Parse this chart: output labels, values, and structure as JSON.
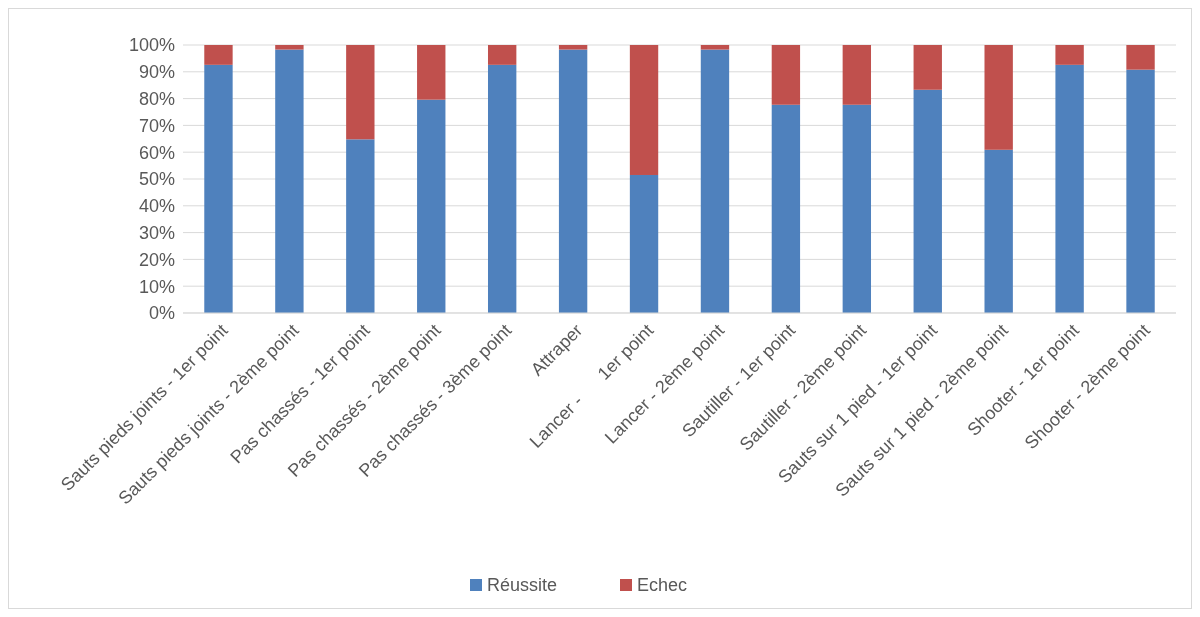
{
  "chart_data": {
    "type": "bar",
    "stacked": true,
    "categories": [
      "Sauts pieds joints - 1er point",
      "Sauts pieds joints - 2ème point",
      "Pas chassés - 1er point",
      "Pas chassés - 2ème point",
      "Pas chassés - 3ème point",
      "Attraper",
      "Lancer -      1er point",
      "Lancer - 2ème point",
      "Sautiller - 1er point",
      "Sautiller - 2ème point",
      "Sauts sur 1 pied - 1er point",
      "Sauts sur 1 pied - 2ème point",
      "Shooter - 1er point",
      "Shooter - 2ème point"
    ],
    "series": [
      {
        "name": "Réussite",
        "color": "#4f81bd",
        "values": [
          92.6,
          98.3,
          64.8,
          79.6,
          92.6,
          98.3,
          51.5,
          98.3,
          77.7,
          77.7,
          83.3,
          60.9,
          92.6,
          90.8
        ]
      },
      {
        "name": "Echec",
        "color": "#c0504d",
        "values": [
          7.4,
          1.7,
          35.2,
          20.4,
          7.4,
          1.7,
          48.5,
          1.7,
          22.3,
          22.3,
          16.7,
          39.1,
          7.4,
          9.2
        ]
      }
    ],
    "ylim": [
      0,
      100
    ],
    "yticks": [
      {
        "value": 0,
        "label": "0%"
      },
      {
        "value": 10,
        "label": "10%"
      },
      {
        "value": 20,
        "label": "20%"
      },
      {
        "value": 30,
        "label": "30%"
      },
      {
        "value": 40,
        "label": "40%"
      },
      {
        "value": 50,
        "label": "50%"
      },
      {
        "value": 60,
        "label": "60%"
      },
      {
        "value": 70,
        "label": "70%"
      },
      {
        "value": 80,
        "label": "80%"
      },
      {
        "value": 90,
        "label": "90%"
      },
      {
        "value": 100,
        "label": "100%"
      }
    ],
    "grid": "y",
    "legend": "bottom"
  }
}
